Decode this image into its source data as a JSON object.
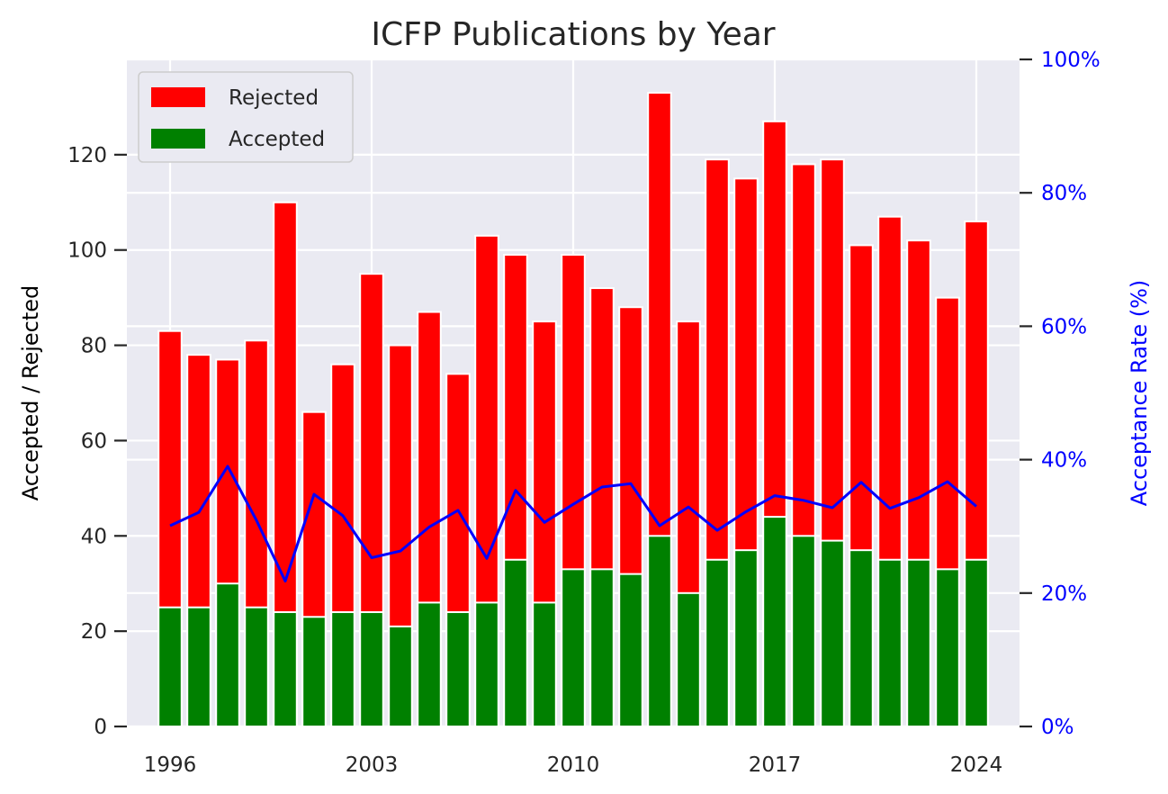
{
  "chart_data": {
    "type": "bar",
    "title": "ICFP Publications by Year",
    "ylabel": "Accepted / Rejected",
    "y2label": "Acceptance Rate (%)",
    "ylim": [
      0,
      140
    ],
    "y2lim": [
      0,
      100
    ],
    "yticks": [
      0,
      20,
      40,
      60,
      80,
      100,
      120
    ],
    "y2ticks": [
      "0%",
      "20%",
      "40%",
      "60%",
      "80%",
      "100%"
    ],
    "xtick_labels": [
      "1996",
      "2003",
      "2010",
      "2017",
      "2024"
    ],
    "x": [
      1996,
      1997,
      1998,
      1999,
      2000,
      2001,
      2002,
      2003,
      2004,
      2005,
      2006,
      2007,
      2008,
      2009,
      2010,
      2011,
      2012,
      2013,
      2014,
      2015,
      2016,
      2017,
      2018,
      2019,
      2020,
      2021,
      2022,
      2023,
      2024
    ],
    "stacked": true,
    "grid": true,
    "legend_position": "top-left",
    "series": [
      {
        "name": "Rejected",
        "color": "#ff0000",
        "totals": [
          83,
          78,
          77,
          81,
          110,
          66,
          76,
          95,
          80,
          87,
          74,
          103,
          99,
          85,
          99,
          92,
          88,
          133,
          85,
          119,
          115,
          127,
          118,
          119,
          101,
          107,
          102,
          90,
          106
        ]
      },
      {
        "name": "Accepted",
        "color": "#008000",
        "values": [
          25,
          25,
          30,
          25,
          24,
          23,
          24,
          24,
          21,
          26,
          24,
          26,
          35,
          26,
          33,
          33,
          32,
          40,
          28,
          35,
          37,
          44,
          40,
          39,
          37,
          35,
          35,
          33,
          35
        ]
      }
    ],
    "rate_series": {
      "color": "#0000ff",
      "values": [
        30.1,
        32.1,
        39.0,
        30.9,
        21.8,
        34.8,
        31.6,
        25.3,
        26.3,
        29.9,
        32.4,
        25.2,
        35.4,
        30.6,
        33.3,
        35.9,
        36.4,
        30.1,
        32.9,
        29.4,
        32.2,
        34.6,
        33.9,
        32.8,
        36.6,
        32.7,
        34.3,
        36.7,
        33.0
      ]
    },
    "right_axis_color": "#0000ff"
  }
}
